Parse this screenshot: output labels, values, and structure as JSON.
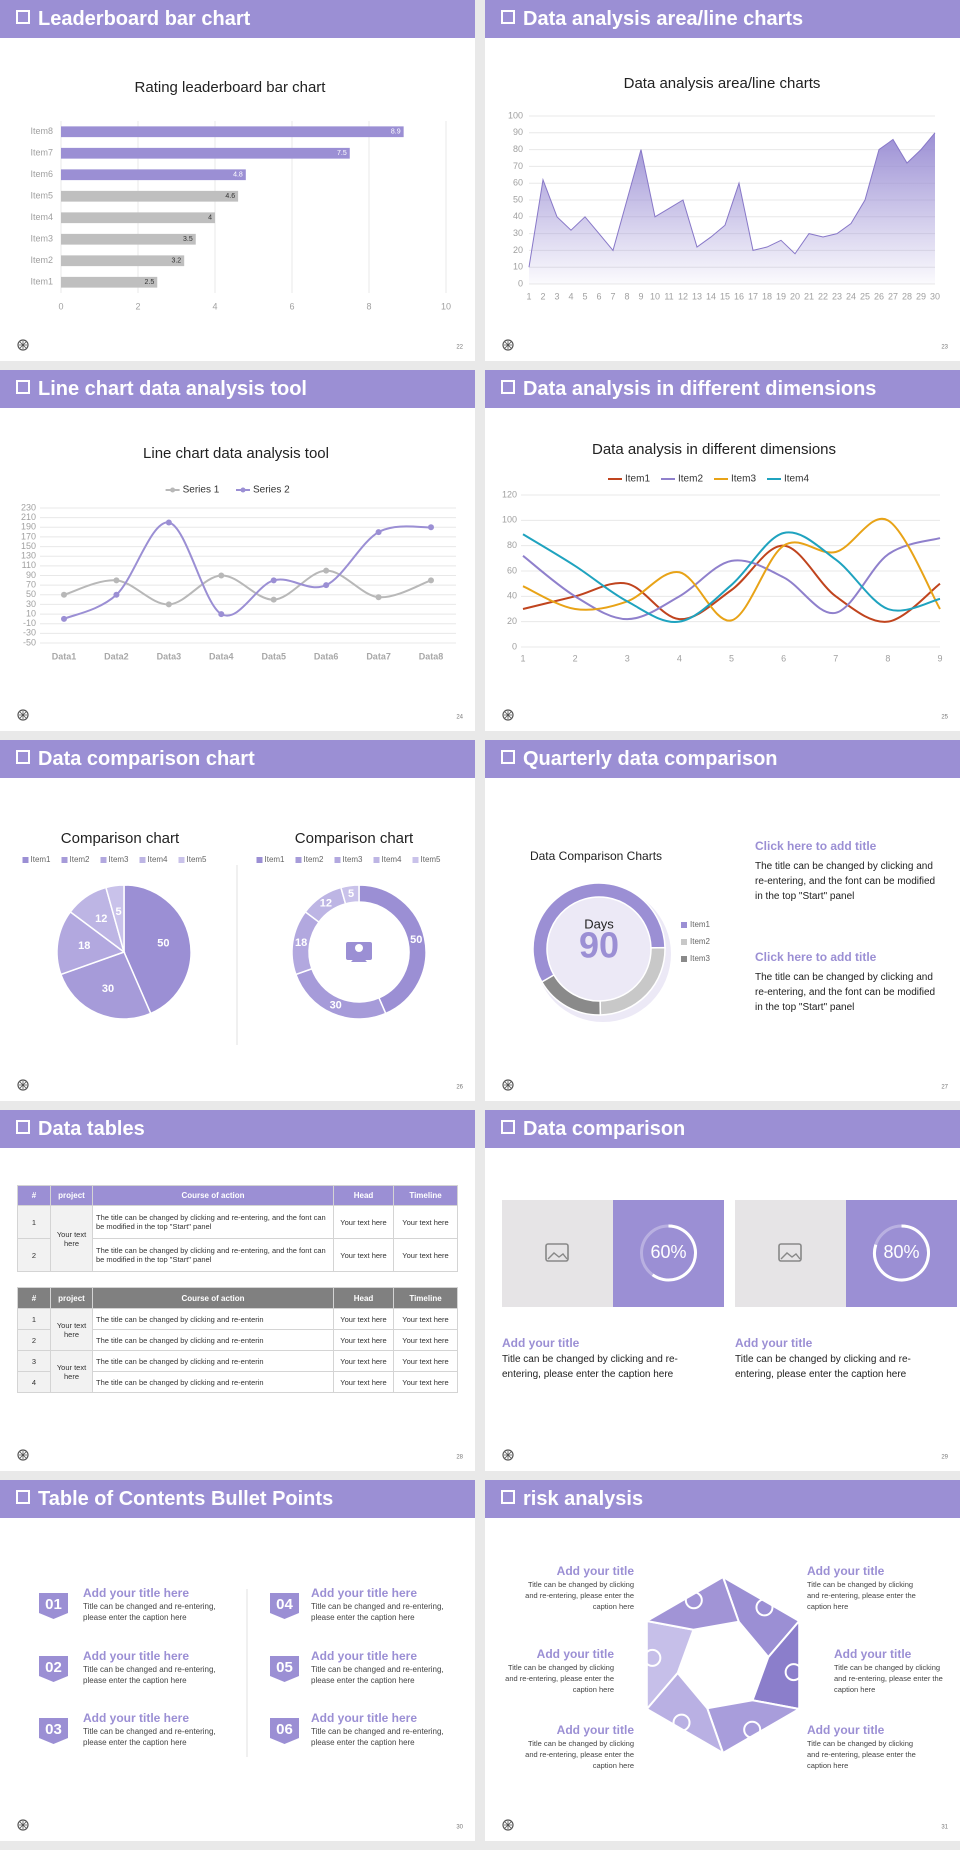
{
  "slides": [
    {
      "title": "Leaderboard bar chart",
      "page": "22",
      "chart_data": {
        "type": "hbar",
        "title": "Rating leaderboard bar chart",
        "categories": [
          "Item1",
          "Item2",
          "Item3",
          "Item4",
          "Item5",
          "Item6",
          "Item7",
          "Item8"
        ],
        "values": [
          2.5,
          3.2,
          3.5,
          4,
          4.6,
          4.8,
          7.5,
          8.9
        ],
        "colors": [
          "#bfbfbf",
          "#bfbfbf",
          "#bfbfbf",
          "#bfbfbf",
          "#bfbfbf",
          "#9b8fd4",
          "#9b8fd4",
          "#9b8fd4"
        ],
        "xlim": [
          0,
          10
        ],
        "xticks": [
          0,
          2,
          4,
          6,
          8,
          10
        ],
        "grid": true
      }
    },
    {
      "title": "Data analysis area/line charts",
      "page": "23",
      "chart_data": {
        "type": "area",
        "title": "Data analysis area/line charts",
        "color": "#9b8fd4",
        "x": [
          1,
          2,
          3,
          4,
          5,
          6,
          7,
          8,
          9,
          10,
          11,
          12,
          13,
          14,
          15,
          16,
          17,
          18,
          19,
          20,
          21,
          22,
          23,
          24,
          25,
          26,
          27,
          28,
          29,
          30
        ],
        "values": [
          10,
          62,
          40,
          32,
          40,
          30,
          20,
          50,
          80,
          40,
          45,
          50,
          22,
          28,
          35,
          60,
          20,
          22,
          26,
          18,
          30,
          28,
          30,
          36,
          50,
          80,
          86,
          72,
          80,
          90
        ],
        "xlim": [
          1,
          30
        ],
        "xticks": [
          1,
          2,
          3,
          4,
          5,
          6,
          7,
          8,
          9,
          10,
          11,
          12,
          13,
          14,
          15,
          16,
          17,
          18,
          19,
          20,
          21,
          22,
          23,
          24,
          25,
          26,
          27,
          28,
          29,
          30
        ],
        "ylim": [
          0,
          100
        ],
        "yticks": [
          0,
          10,
          20,
          30,
          40,
          50,
          60,
          70,
          80,
          90,
          100
        ],
        "grid": true
      }
    },
    {
      "title": "Line chart data analysis tool",
      "page": "24",
      "chart_data": {
        "type": "line",
        "smooth": true,
        "markers": true,
        "legend": "top",
        "grid": true,
        "title": "Line chart data analysis tool",
        "categories": [
          "Data1",
          "Data2",
          "Data3",
          "Data4",
          "Data5",
          "Data6",
          "Data7",
          "Data8"
        ],
        "series": [
          {
            "name": "Series 1",
            "color": "#b8b8b8",
            "values": [
              50,
              80,
              30,
              90,
              40,
              100,
              45,
              80
            ]
          },
          {
            "name": "Series 2",
            "color": "#9b8fd4",
            "values": [
              0,
              50,
              200,
              10,
              80,
              70,
              180,
              190
            ]
          }
        ],
        "ylim": [
          -50,
          230
        ],
        "yticks": [
          -50,
          -30,
          -10,
          10,
          30,
          50,
          70,
          90,
          110,
          130,
          150,
          170,
          190,
          210,
          230
        ]
      }
    },
    {
      "title": "Data analysis in different dimensions",
      "page": "25",
      "chart_data": {
        "type": "line",
        "smooth": true,
        "markers": false,
        "legend": "top",
        "grid": true,
        "title": "Data analysis in different dimensions",
        "x": [
          1,
          2,
          3,
          4,
          5,
          6,
          7,
          8,
          9
        ],
        "xlim": [
          1,
          9
        ],
        "xticks": [
          1,
          2,
          3,
          4,
          5,
          6,
          7,
          8,
          9
        ],
        "series": [
          {
            "name": "Item1",
            "color": "#c0441e",
            "values": [
              30,
              40,
              50,
              22,
              45,
              80,
              40,
              20,
              50
            ]
          },
          {
            "name": "Item2",
            "color": "#8f80cc",
            "values": [
              72,
              40,
              22,
              40,
              68,
              55,
              27,
              73,
              86
            ]
          },
          {
            "name": "Item3",
            "color": "#e8a317",
            "values": [
              48,
              30,
              36,
              59,
              21,
              80,
              75,
              100,
              30
            ]
          },
          {
            "name": "Item4",
            "color": "#1fa3bf",
            "values": [
              89,
              64,
              36,
              20,
              49,
              90,
              69,
              30,
              38
            ]
          }
        ],
        "ylim": [
          0,
          120
        ],
        "yticks": [
          0,
          20,
          40,
          60,
          80,
          100,
          120
        ]
      }
    },
    {
      "title": "Data comparison chart",
      "page": "26",
      "chart_data": [
        {
          "type": "pie",
          "title": "Comparison chart",
          "categories": [
            "Item1",
            "Item2",
            "Item3",
            "Item4",
            "Item5"
          ],
          "values": [
            50,
            30,
            18,
            12,
            5
          ],
          "colors": [
            "#9b8fd4",
            "#a69bd9",
            "#b2a8df",
            "#bdb5e4",
            "#c9c2ea"
          ]
        },
        {
          "type": "donut",
          "title": "Comparison chart",
          "categories": [
            "Item1",
            "Item2",
            "Item3",
            "Item4",
            "Item5"
          ],
          "values": [
            50,
            30,
            18,
            12,
            5
          ],
          "colors": [
            "#9b8fd4",
            "#a69bd9",
            "#b2a8df",
            "#bdb5e4",
            "#c9c2ea"
          ]
        }
      ]
    },
    {
      "title": "Quarterly data comparison",
      "page": "27",
      "chart_data": {
        "type": "donut",
        "title": "Data Comparison Charts",
        "center_label": "Days",
        "center_value": 90,
        "categories": [
          "Item1",
          "Item2",
          "Item3"
        ],
        "values": [
          58,
          25,
          17
        ],
        "colors": [
          "#9b8fd4",
          "#c8c8c8",
          "#8a8a8a"
        ]
      },
      "blocks": [
        {
          "title": "Click here to add title",
          "text": "The title can be changed by clicking and re-entering, and the font can be modified in the top \"Start\" panel"
        },
        {
          "title": "Click here to add title",
          "text": "The title can be changed by clicking and re-entering, and the font can be modified in the top \"Start\" panel"
        }
      ]
    },
    {
      "title": "Data tables",
      "page": "28",
      "tables": [
        {
          "header": [
            "#",
            "project",
            "Course of action",
            "Head",
            "Timeline"
          ],
          "groups": [
            {
              "project": "Your text here",
              "rows": [
                [
                  1,
                  "The title can be changed by clicking and re-entering, and the font can be modified in the top \"Start\" panel",
                  "Your text here",
                  "Your text here"
                ],
                [
                  2,
                  "The title can be changed by clicking and re-entering, and the font can be modified in the top \"Start\" panel",
                  "Your text here",
                  "Your text here"
                ]
              ]
            }
          ]
        },
        {
          "header": [
            "#",
            "project",
            "Course of action",
            "Head",
            "Timeline"
          ],
          "groups": [
            {
              "project": "Your text here",
              "rows": [
                [
                  1,
                  "The title can be changed by clicking and re-enterin",
                  "Your text here",
                  "Your text here"
                ],
                [
                  2,
                  "The title can be changed by clicking and re-enterin",
                  "Your text here",
                  "Your text here"
                ]
              ]
            },
            {
              "project": "Your text here",
              "rows": [
                [
                  3,
                  "The title can be changed by clicking and re-enterin",
                  "Your text here",
                  "Your text here"
                ],
                [
                  4,
                  "The title can be changed by clicking and re-enterin",
                  "Your text here",
                  "Your text here"
                ]
              ]
            }
          ]
        }
      ]
    },
    {
      "title": "Data comparison",
      "page": "29",
      "cards": [
        {
          "value": 60,
          "value_label": "60%",
          "title": "Add your title",
          "text": "Title can be changed by clicking and re-entering, please enter the caption here"
        },
        {
          "value": 80,
          "value_label": "80%",
          "title": "Add your title",
          "text": "Title can be changed by clicking and re-entering, please enter the caption here"
        }
      ]
    },
    {
      "title": "Table of Contents Bullet Points",
      "page": "30",
      "items": [
        {
          "number": "01",
          "title": "Add your title here",
          "text": "Title can be changed and re-entering, please enter the caption here"
        },
        {
          "number": "02",
          "title": "Add your title here",
          "text": "Title can be changed and re-entering, please enter the caption here"
        },
        {
          "number": "03",
          "title": "Add your title here",
          "text": "Title can be changed and re-entering, please enter the caption here"
        },
        {
          "number": "04",
          "title": "Add your title here",
          "text": "Title can be changed and re-entering, please enter the caption here"
        },
        {
          "number": "05",
          "title": "Add your title here",
          "text": "Title can be changed and re-entering, please enter the caption here"
        },
        {
          "number": "06",
          "title": "Add your title here",
          "text": "Title can be changed and re-entering, please enter the caption here"
        }
      ]
    },
    {
      "title": "risk analysis",
      "page": "31",
      "items": [
        {
          "title": "Add your title",
          "text": "Title can be changed by clicking and re-entering, please enter the caption here"
        },
        {
          "title": "Add your title",
          "text": "Title can be changed by clicking and re-entering, please enter the caption here"
        },
        {
          "title": "Add your title",
          "text": "Title can be changed by clicking and re-entering, please enter the caption here"
        },
        {
          "title": "Add your title",
          "text": "Title can be changed by clicking and re-entering, please enter the caption here"
        },
        {
          "title": "Add your title",
          "text": "Title can be changed by clicking and re-entering, please enter the caption here"
        },
        {
          "title": "Add your title",
          "text": "Title can be changed by clicking and re-entering, please enter the caption here"
        }
      ]
    }
  ]
}
